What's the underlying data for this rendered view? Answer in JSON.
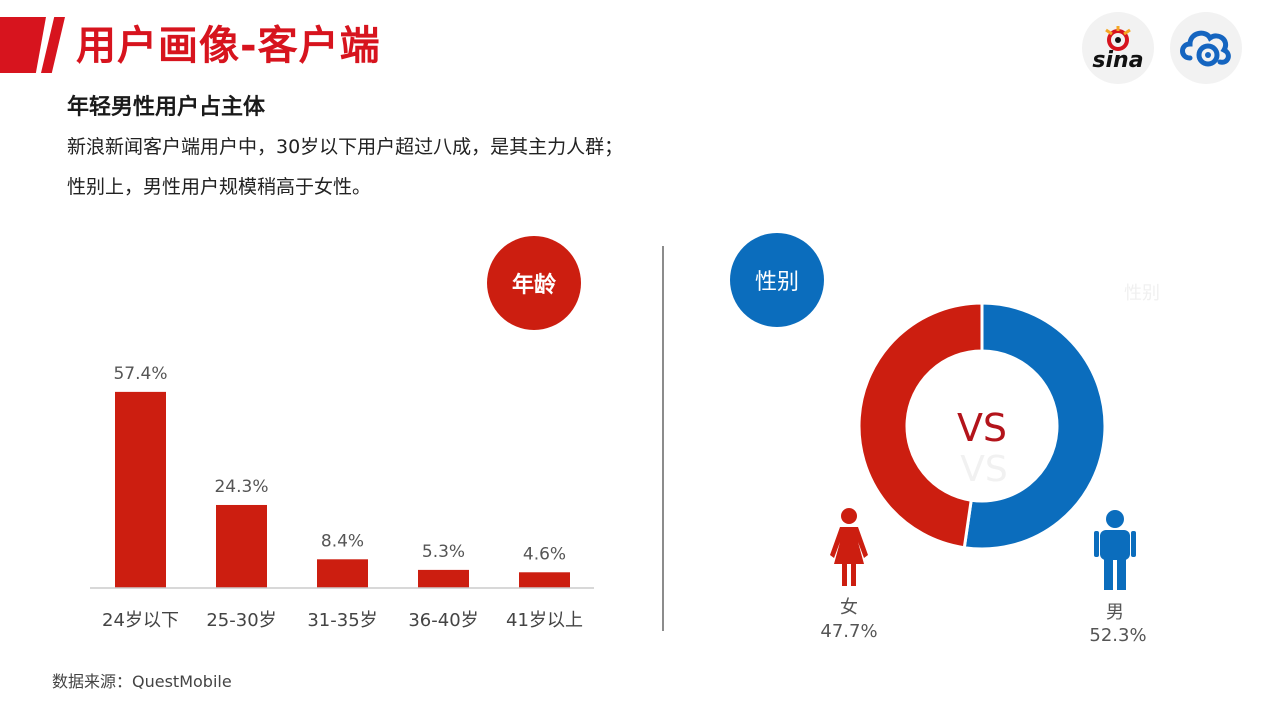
{
  "header": {
    "title": "用户画像-客户端",
    "subtitle": "年轻男性用户占主体",
    "desc_lines": [
      "新浪新闻客户端用户中，30岁以下用户超过八成，是其主力人群；",
      "性别上，男性用户规模稍高于女性。"
    ]
  },
  "logos": {
    "sina_text": "sina"
  },
  "badges": {
    "age": "年龄",
    "gender": "性别"
  },
  "ghost": {
    "label": "性别",
    "vs": "VS"
  },
  "colors": {
    "red": "#cc1e10",
    "blue": "#0b6dbd",
    "brand_red": "#d7141e"
  },
  "chart_data": [
    {
      "type": "bar",
      "categories": [
        "24岁以下",
        "25-30岁",
        "31-35岁",
        "36-40岁",
        "41岁以上"
      ],
      "values": [
        57.4,
        24.3,
        8.4,
        5.3,
        4.6
      ],
      "value_labels": [
        "57.4%",
        "24.3%",
        "8.4%",
        "5.3%",
        "4.6%"
      ],
      "unit": "%",
      "ylim": [
        0,
        60
      ]
    },
    {
      "type": "pie",
      "center_label": "VS",
      "slices": [
        {
          "label": "男",
          "value": 52.3,
          "value_label": "52.3%",
          "color": "#0b6dbd",
          "icon": "male-icon"
        },
        {
          "label": "女",
          "value": 47.7,
          "value_label": "47.7%",
          "color": "#cc1e10",
          "icon": "female-icon"
        }
      ]
    }
  ],
  "footer": {
    "source": "数据来源：QuestMobile"
  }
}
